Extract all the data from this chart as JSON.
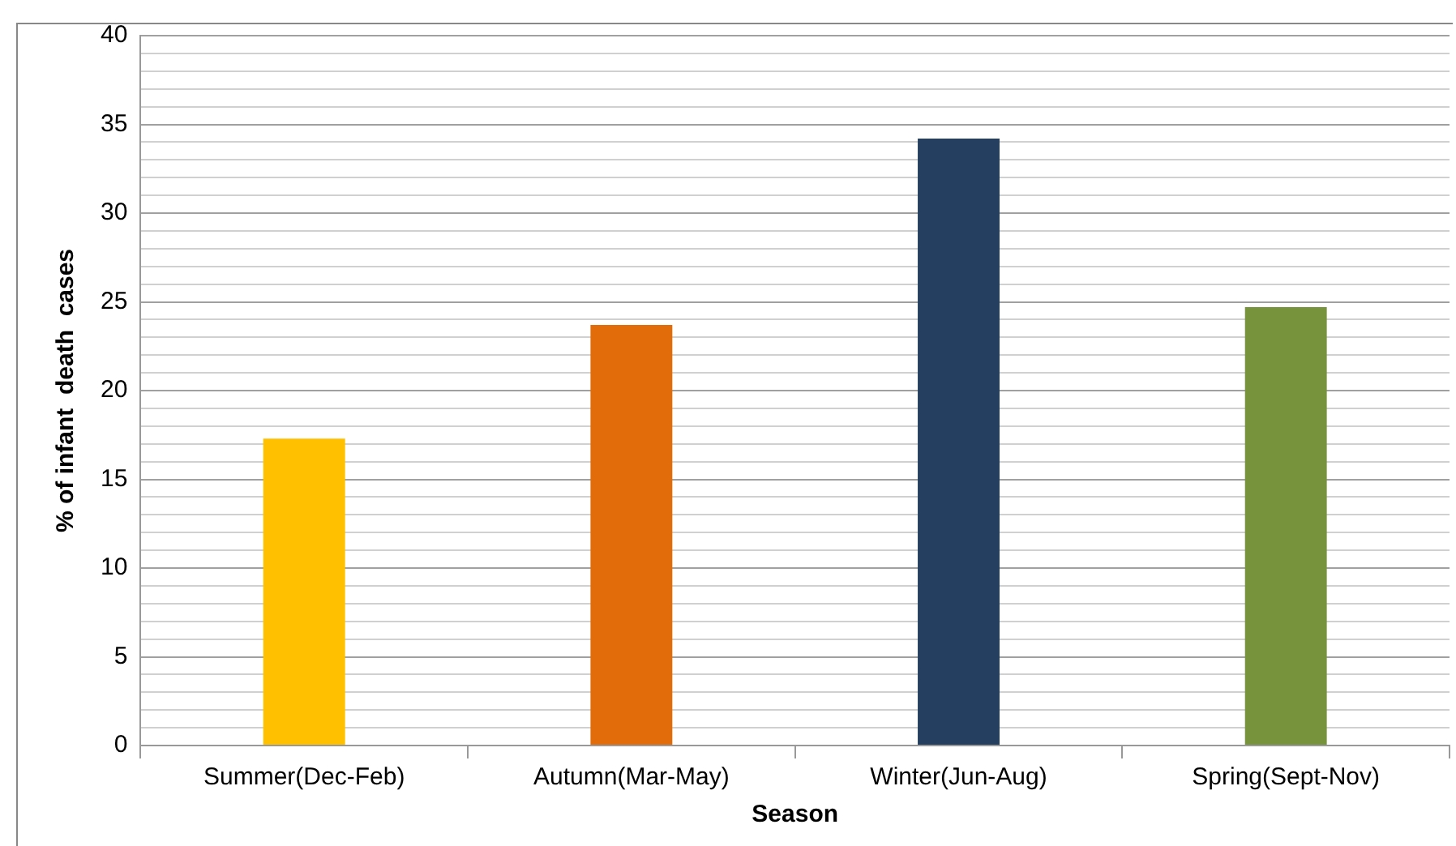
{
  "chart_data": {
    "type": "bar",
    "xlabel": "Season",
    "ylabel": "% of infant  death  cases",
    "categories": [
      "Summer(Dec-Feb)",
      "Autumn(Mar-May)",
      "Winter(Jun-Aug)",
      "Spring(Sept-Nov)"
    ],
    "values": [
      17.3,
      23.7,
      34.2,
      24.7
    ],
    "colors": [
      "#ffc000",
      "#e36c0a",
      "#243f60",
      "#77933c"
    ],
    "ylim": [
      0,
      40
    ],
    "yticks": [
      0,
      {
        "value": 1,
        "label": null
      },
      {
        "value": 2,
        "label": null
      },
      {
        "value": 3,
        "label": null
      },
      {
        "value": 4,
        "label": null
      },
      5,
      {
        "value": 6,
        "label": null
      },
      {
        "value": 7,
        "label": null
      },
      {
        "value": 8,
        "label": null
      },
      {
        "value": 9,
        "label": null
      },
      10,
      {
        "value": 11,
        "label": null
      },
      {
        "value": 12,
        "label": null
      },
      {
        "value": 13,
        "label": null
      },
      {
        "value": 14,
        "label": null
      },
      15,
      {
        "value": 16,
        "label": null
      },
      {
        "value": 17,
        "label": null
      },
      {
        "value": 18,
        "label": null
      },
      {
        "value": 19,
        "label": null
      },
      20,
      {
        "value": 21,
        "label": null
      },
      {
        "value": 22,
        "label": null
      },
      {
        "value": 23,
        "label": null
      },
      {
        "value": 24,
        "label": null
      },
      25,
      {
        "value": 26,
        "label": null
      },
      {
        "value": 27,
        "label": null
      },
      {
        "value": 28,
        "label": null
      },
      {
        "value": 29,
        "label": null
      },
      30,
      {
        "value": 31,
        "label": null
      },
      {
        "value": 32,
        "label": null
      },
      {
        "value": 33,
        "label": null
      },
      {
        "value": 34,
        "label": null
      },
      35,
      {
        "value": 36,
        "label": null
      },
      {
        "value": 37,
        "label": null
      },
      {
        "value": 38,
        "label": null
      },
      {
        "value": 39,
        "label": null
      },
      40
    ],
    "grid": true,
    "legend": false
  }
}
